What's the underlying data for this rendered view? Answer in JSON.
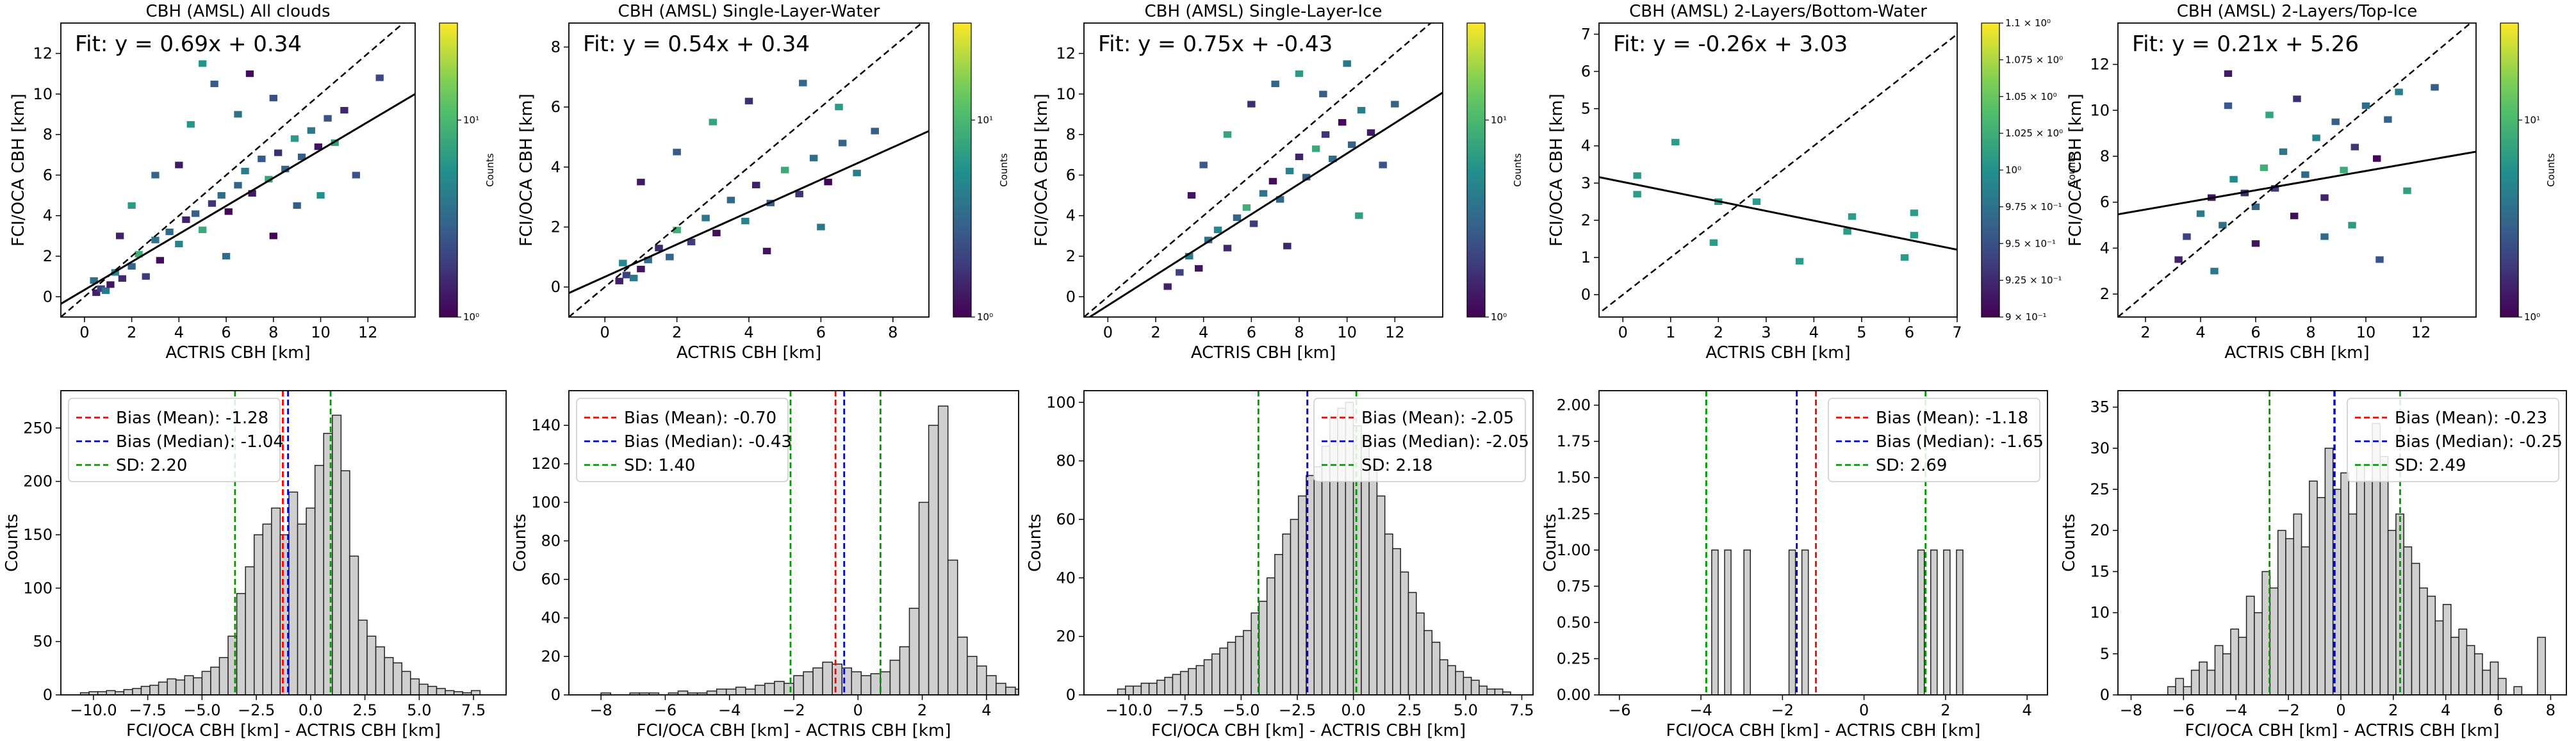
{
  "chart_data": [
    {
      "type": "heatmap",
      "title": "CBH (AMSL) All clouds",
      "xlabel": "ACTRIS CBH [km]",
      "ylabel": "FCI/OCA CBH [km]",
      "xlim": [
        -1,
        14
      ],
      "ylim": [
        -1,
        13.5
      ],
      "xticks": [
        "0",
        "2",
        "4",
        "6",
        "8",
        "10",
        "12"
      ],
      "yticks": [
        "0",
        "2",
        "4",
        "6",
        "8",
        "10",
        "12"
      ],
      "fit_label": "Fit: y = 0.69x + 0.34",
      "fit": {
        "slope": 0.69,
        "intercept": 0.34
      },
      "one_to_one": true,
      "cells": [
        [
          0.5,
          0.2
        ],
        [
          0.7,
          0.4
        ],
        [
          0.9,
          0.3
        ],
        [
          1.1,
          0.6
        ],
        [
          0.4,
          0.8
        ],
        [
          1.3,
          1.2
        ],
        [
          1.6,
          0.9
        ],
        [
          2.0,
          1.5
        ],
        [
          2.3,
          2.1
        ],
        [
          2.6,
          1.0
        ],
        [
          3.0,
          2.8
        ],
        [
          3.2,
          1.8
        ],
        [
          3.6,
          3.2
        ],
        [
          4.0,
          2.6
        ],
        [
          4.3,
          3.8
        ],
        [
          4.7,
          4.1
        ],
        [
          5.0,
          3.3
        ],
        [
          5.4,
          4.6
        ],
        [
          5.8,
          5.0
        ],
        [
          6.1,
          4.2
        ],
        [
          6.5,
          5.5
        ],
        [
          6.8,
          6.2
        ],
        [
          7.1,
          5.1
        ],
        [
          7.5,
          6.8
        ],
        [
          7.8,
          5.8
        ],
        [
          8.2,
          7.1
        ],
        [
          8.5,
          6.3
        ],
        [
          8.9,
          7.8
        ],
        [
          9.2,
          6.9
        ],
        [
          9.6,
          8.2
        ],
        [
          9.9,
          7.4
        ],
        [
          10.3,
          8.8
        ],
        [
          10.6,
          7.6
        ],
        [
          11.0,
          9.2
        ],
        [
          3.0,
          6.0
        ],
        [
          4.5,
          8.5
        ],
        [
          5.5,
          10.5
        ],
        [
          6.5,
          9.0
        ],
        [
          7.0,
          11.0
        ],
        [
          8.0,
          9.8
        ],
        [
          2.0,
          4.5
        ],
        [
          1.5,
          3.0
        ],
        [
          9.0,
          4.5
        ],
        [
          10.0,
          5.0
        ],
        [
          11.5,
          6.0
        ],
        [
          6.0,
          2.0
        ],
        [
          8.0,
          3.0
        ],
        [
          12.5,
          10.8
        ],
        [
          5.0,
          11.5
        ],
        [
          4.0,
          6.5
        ]
      ],
      "cells_color": "viridis",
      "colorbar": {
        "label": "Counts",
        "ticks": [
          "10⁰",
          "10¹"
        ],
        "scale": "log"
      }
    },
    {
      "type": "heatmap",
      "title": "CBH (AMSL) Single-Layer-Water",
      "xlabel": "ACTRIS CBH [km]",
      "ylabel": "FCI/OCA CBH [km]",
      "xlim": [
        -1,
        9
      ],
      "ylim": [
        -1,
        8.8
      ],
      "xticks": [
        "0",
        "2",
        "4",
        "6",
        "8"
      ],
      "yticks": [
        "0",
        "2",
        "4",
        "6",
        "8"
      ],
      "fit_label": "Fit: y = 0.54x + 0.34",
      "fit": {
        "slope": 0.54,
        "intercept": 0.34
      },
      "one_to_one": true,
      "cells": [
        [
          0.4,
          0.2
        ],
        [
          0.6,
          0.4
        ],
        [
          0.8,
          0.3
        ],
        [
          1.0,
          0.6
        ],
        [
          1.2,
          0.9
        ],
        [
          0.5,
          0.8
        ],
        [
          1.5,
          1.3
        ],
        [
          1.8,
          1.0
        ],
        [
          2.0,
          1.9
        ],
        [
          2.4,
          1.5
        ],
        [
          2.8,
          2.3
        ],
        [
          3.1,
          1.8
        ],
        [
          3.5,
          2.9
        ],
        [
          3.9,
          2.2
        ],
        [
          4.2,
          3.4
        ],
        [
          4.6,
          2.8
        ],
        [
          5.0,
          3.9
        ],
        [
          5.4,
          3.1
        ],
        [
          5.8,
          4.3
        ],
        [
          6.2,
          3.5
        ],
        [
          6.6,
          4.8
        ],
        [
          7.0,
          3.8
        ],
        [
          1.0,
          3.5
        ],
        [
          2.0,
          4.5
        ],
        [
          3.0,
          5.5
        ],
        [
          4.0,
          6.2
        ],
        [
          5.5,
          6.8
        ],
        [
          6.5,
          6.0
        ],
        [
          7.5,
          5.2
        ],
        [
          6.0,
          2.0
        ],
        [
          4.5,
          1.2
        ]
      ],
      "cells_color": "viridis",
      "colorbar": {
        "label": "Counts",
        "ticks": [
          "10⁰",
          "10¹"
        ],
        "scale": "log"
      }
    },
    {
      "type": "heatmap",
      "title": "CBH (AMSL) Single-Layer-Ice",
      "xlabel": "ACTRIS CBH [km]",
      "ylabel": "FCI/OCA CBH [km]",
      "xlim": [
        -1,
        14
      ],
      "ylim": [
        -1,
        13.5
      ],
      "xticks": [
        "0",
        "2",
        "4",
        "6",
        "8",
        "10",
        "12"
      ],
      "yticks": [
        "0",
        "2",
        "4",
        "6",
        "8",
        "10",
        "12"
      ],
      "fit_label": "Fit: y = 0.75x + -0.43",
      "fit": {
        "slope": 0.75,
        "intercept": -0.43
      },
      "one_to_one": true,
      "cells": [
        [
          2.5,
          0.5
        ],
        [
          3.0,
          1.2
        ],
        [
          3.4,
          2.0
        ],
        [
          3.8,
          1.4
        ],
        [
          4.2,
          2.8
        ],
        [
          4.6,
          3.3
        ],
        [
          5.0,
          2.4
        ],
        [
          5.4,
          3.9
        ],
        [
          5.8,
          4.4
        ],
        [
          6.1,
          3.6
        ],
        [
          6.5,
          5.1
        ],
        [
          6.9,
          5.7
        ],
        [
          7.2,
          4.8
        ],
        [
          7.6,
          6.2
        ],
        [
          8.0,
          6.9
        ],
        [
          8.3,
          5.9
        ],
        [
          8.7,
          7.3
        ],
        [
          9.1,
          8.0
        ],
        [
          9.4,
          6.8
        ],
        [
          9.8,
          8.6
        ],
        [
          10.2,
          7.5
        ],
        [
          10.6,
          9.2
        ],
        [
          11.0,
          8.1
        ],
        [
          4.0,
          6.5
        ],
        [
          5.0,
          8.0
        ],
        [
          6.0,
          9.5
        ],
        [
          7.0,
          10.5
        ],
        [
          8.0,
          11.0
        ],
        [
          9.0,
          10.0
        ],
        [
          10.0,
          11.5
        ],
        [
          3.5,
          5.0
        ],
        [
          11.5,
          6.5
        ],
        [
          10.5,
          4.0
        ],
        [
          7.5,
          2.5
        ],
        [
          12.0,
          9.5
        ]
      ],
      "cells_color": "viridis",
      "colorbar": {
        "label": "Counts",
        "ticks": [
          "10⁰",
          "10¹"
        ],
        "scale": "log"
      }
    },
    {
      "type": "heatmap",
      "title": "CBH (AMSL) 2-Layers/Bottom-Water",
      "xlabel": "ACTRIS CBH [km]",
      "ylabel": "FCI/OCA CBH [km]",
      "xlim": [
        -0.5,
        7
      ],
      "ylim": [
        -0.6,
        7.3
      ],
      "xticks": [
        "0",
        "1",
        "2",
        "3",
        "4",
        "5",
        "6",
        "7"
      ],
      "yticks": [
        "0",
        "1",
        "2",
        "3",
        "4",
        "5",
        "6",
        "7"
      ],
      "fit_label": "Fit: y = -0.26x + 3.03",
      "fit": {
        "slope": -0.26,
        "intercept": 3.03
      },
      "one_to_one": true,
      "cells": [
        [
          0.3,
          3.2
        ],
        [
          0.3,
          2.7
        ],
        [
          1.1,
          4.1
        ],
        [
          2.0,
          2.5
        ],
        [
          1.9,
          1.4
        ],
        [
          2.8,
          2.5
        ],
        [
          3.7,
          0.9
        ],
        [
          4.8,
          2.1
        ],
        [
          4.7,
          1.7
        ],
        [
          5.9,
          1.0
        ],
        [
          6.1,
          2.2
        ],
        [
          6.1,
          1.6
        ]
      ],
      "cells_color": "#2a9d8a",
      "colorbar": {
        "label": "Counts",
        "ticks": [
          "9 × 10⁻¹",
          "9.25 × 10⁻¹",
          "9.5 × 10⁻¹",
          "9.75 × 10⁻¹",
          "10⁰",
          "1.025 × 10⁰",
          "1.05 × 10⁰",
          "1.075 × 10⁰",
          "1.1 × 10⁰"
        ],
        "scale": "log"
      }
    },
    {
      "type": "heatmap",
      "title": "CBH (AMSL) 2-Layers/Top-Ice",
      "xlabel": "ACTRIS CBH [km]",
      "ylabel": "FCI/OCA CBH [km]",
      "xlim": [
        1,
        14
      ],
      "ylim": [
        1,
        13.8
      ],
      "xticks": [
        "2",
        "4",
        "6",
        "8",
        "10",
        "12"
      ],
      "yticks": [
        "2",
        "4",
        "6",
        "8",
        "10",
        "12"
      ],
      "fit_label": "Fit: y = 0.21x + 5.26",
      "fit": {
        "slope": 0.21,
        "intercept": 5.26
      },
      "one_to_one": true,
      "cells": [
        [
          3.2,
          3.5
        ],
        [
          3.5,
          4.5
        ],
        [
          4.0,
          5.5
        ],
        [
          4.4,
          6.2
        ],
        [
          4.8,
          5.0
        ],
        [
          5.2,
          7.0
        ],
        [
          5.6,
          6.4
        ],
        [
          6.0,
          5.8
        ],
        [
          6.3,
          7.5
        ],
        [
          6.7,
          6.6
        ],
        [
          7.0,
          8.2
        ],
        [
          7.4,
          5.4
        ],
        [
          7.8,
          7.2
        ],
        [
          8.2,
          8.8
        ],
        [
          8.5,
          6.2
        ],
        [
          8.9,
          9.5
        ],
        [
          9.2,
          7.4
        ],
        [
          9.6,
          8.4
        ],
        [
          10.0,
          10.2
        ],
        [
          10.4,
          7.9
        ],
        [
          10.8,
          9.6
        ],
        [
          11.2,
          10.8
        ],
        [
          5.0,
          11.6
        ],
        [
          5.0,
          10.2
        ],
        [
          6.5,
          9.8
        ],
        [
          7.5,
          10.5
        ],
        [
          8.5,
          4.5
        ],
        [
          9.5,
          5.0
        ],
        [
          12.5,
          11.0
        ],
        [
          4.5,
          3.0
        ],
        [
          6.0,
          4.2
        ],
        [
          10.5,
          3.5
        ],
        [
          11.5,
          6.5
        ]
      ],
      "cells_color": "viridis",
      "colorbar": {
        "label": "Counts",
        "ticks": [
          "10⁰",
          "10¹"
        ],
        "scale": "log"
      }
    },
    {
      "type": "bar",
      "xlabel": "FCI/OCA CBH [km] - ACTRIS CBH [km]",
      "ylabel": "Counts",
      "xlim": [
        -11.5,
        9
      ],
      "ylim": [
        0,
        285
      ],
      "xticks": [
        "−10.0",
        "−7.5",
        "−5.0",
        "−2.5",
        "0.0",
        "2.5",
        "5.0",
        "7.5"
      ],
      "yticks": [
        "0",
        "50",
        "100",
        "150",
        "200",
        "250"
      ],
      "legend": [
        "Bias (Mean): -1.28",
        "Bias (Median): -1.04",
        "SD: 2.20"
      ],
      "legend_position": "top-left",
      "bias_mean": -1.28,
      "bias_median": -1.04,
      "sd": 2.2,
      "bin_start": -10.6,
      "bin_width": 0.4,
      "values": [
        2,
        3,
        3,
        4,
        3,
        5,
        6,
        8,
        9,
        12,
        15,
        14,
        18,
        16,
        22,
        26,
        35,
        55,
        95,
        120,
        150,
        160,
        175,
        150,
        190,
        160,
        175,
        215,
        245,
        262,
        210,
        130,
        70,
        55,
        45,
        35,
        30,
        22,
        15,
        10,
        8,
        6,
        4,
        3,
        2,
        4
      ]
    },
    {
      "type": "bar",
      "xlabel": "FCI/OCA CBH [km] - ACTRIS CBH [km]",
      "ylabel": "Counts",
      "xlim": [
        -9,
        5
      ],
      "ylim": [
        0,
        158
      ],
      "xticks": [
        "−8",
        "−6",
        "−4",
        "−2",
        "0",
        "2",
        "4"
      ],
      "yticks": [
        "0",
        "20",
        "40",
        "60",
        "80",
        "100",
        "120",
        "140"
      ],
      "legend": [
        "Bias (Mean): -0.70",
        "Bias (Median): -0.43",
        "SD: 1.40"
      ],
      "legend_position": "top-left",
      "bias_mean": -0.7,
      "bias_median": -0.43,
      "sd": 1.4,
      "bin_start": -8.0,
      "bin_width": 0.3,
      "values": [
        1,
        0,
        0,
        1,
        1,
        1,
        0,
        1,
        2,
        1,
        1,
        2,
        3,
        3,
        4,
        3,
        5,
        6,
        7,
        6,
        10,
        12,
        14,
        17,
        16,
        14,
        12,
        10,
        11,
        12,
        18,
        25,
        45,
        100,
        140,
        150,
        70,
        30,
        20,
        15,
        10,
        6,
        4,
        3,
        2,
        1
      ]
    },
    {
      "type": "bar",
      "xlabel": "FCI/OCA CBH [km] - ACTRIS CBH [km]",
      "ylabel": "Counts",
      "xlim": [
        -12,
        8
      ],
      "ylim": [
        0,
        104
      ],
      "xticks": [
        "−10.0",
        "−7.5",
        "−5.0",
        "−2.5",
        "0.0",
        "2.5",
        "5.0",
        "7.5"
      ],
      "yticks": [
        "0",
        "20",
        "40",
        "60",
        "80",
        "100"
      ],
      "legend": [
        "Bias (Mean): -2.05",
        "Bias (Median): -2.05",
        "SD: 2.18"
      ],
      "legend_position": "top-right",
      "bias_mean": -2.05,
      "bias_median": -2.05,
      "sd": 2.18,
      "bin_start": -10.5,
      "bin_width": 0.35,
      "values": [
        2,
        3,
        3,
        4,
        4,
        5,
        6,
        7,
        8,
        9,
        10,
        12,
        14,
        16,
        18,
        20,
        22,
        28,
        32,
        40,
        48,
        55,
        60,
        68,
        75,
        78,
        85,
        95,
        98,
        100,
        92,
        88,
        78,
        68,
        55,
        50,
        42,
        35,
        28,
        22,
        18,
        12,
        10,
        8,
        6,
        5,
        3,
        2,
        2,
        1
      ]
    },
    {
      "type": "bar",
      "xlabel": "FCI/OCA CBH [km] - ACTRIS CBH [km]",
      "ylabel": "Counts",
      "xlim": [
        -6.5,
        4.5
      ],
      "ylim": [
        0,
        2.1
      ],
      "xticks": [
        "−6",
        "−4",
        "−2",
        "0",
        "2",
        "4"
      ],
      "yticks": [
        "0.00",
        "0.25",
        "0.50",
        "0.75",
        "1.00",
        "1.25",
        "1.50",
        "1.75",
        "2.00"
      ],
      "legend": [
        "Bias (Mean): -1.18",
        "Bias (Median): -1.65",
        "SD: 2.69"
      ],
      "legend_position": "top-right",
      "bias_mean": -1.18,
      "bias_median": -1.65,
      "sd": 2.69,
      "bin_start": -5.0,
      "bin_width": 0.158,
      "values": [
        0,
        0,
        0,
        0,
        0,
        0,
        0,
        0,
        1,
        0,
        1,
        0,
        0,
        1,
        0,
        0,
        0,
        0,
        0,
        0,
        1,
        0,
        1,
        0,
        0,
        0,
        0,
        0,
        0,
        0,
        0,
        0,
        0,
        0,
        0,
        0,
        0,
        0,
        0,
        0,
        1,
        0,
        1,
        0,
        1,
        0,
        1,
        0,
        0,
        0,
        0,
        0,
        0,
        0,
        0,
        0,
        0,
        0,
        0,
        0,
        0,
        1,
        0,
        0,
        0,
        0,
        0,
        2
      ]
    },
    {
      "type": "bar",
      "xlabel": "FCI/OCA CBH [km] - ACTRIS CBH [km]",
      "ylabel": "Counts",
      "xlim": [
        -8.5,
        8.6
      ],
      "ylim": [
        0,
        37
      ],
      "xticks": [
        "−8",
        "−6",
        "−4",
        "−2",
        "0",
        "2",
        "4",
        "6",
        "8"
      ],
      "yticks": [
        "0",
        "5",
        "10",
        "15",
        "20",
        "25",
        "30",
        "35"
      ],
      "legend": [
        "Bias (Mean): -0.23",
        "Bias (Median): -0.25",
        "SD: 2.49"
      ],
      "legend_position": "top-right",
      "bias_mean": -0.23,
      "bias_median": -0.25,
      "sd": 2.49,
      "bin_start": -6.6,
      "bin_width": 0.3,
      "values": [
        1,
        2,
        1,
        3,
        4,
        3,
        6,
        5,
        8,
        7,
        12,
        10,
        15,
        13,
        20,
        19,
        22,
        18,
        26,
        24,
        30,
        25,
        27,
        22,
        28,
        26,
        33,
        29,
        20,
        22,
        18,
        16,
        13,
        12,
        9,
        11,
        7,
        8,
        6,
        5,
        3,
        4,
        2,
        0,
        1,
        0,
        0,
        7
      ]
    }
  ]
}
